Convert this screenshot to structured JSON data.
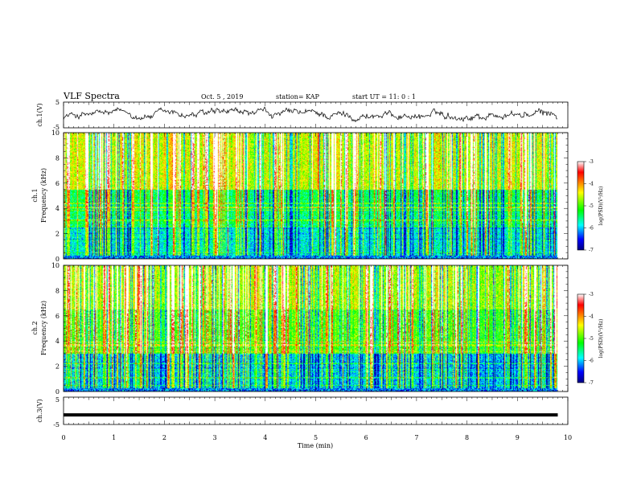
{
  "header": {
    "title": "VLF Spectra",
    "date": "Oct. 5  , 2019",
    "station": "station= KAP",
    "start": "start  UT =   11: 0  : 1"
  },
  "chart_data": [
    {
      "type": "line",
      "panel": "ch1-waveform",
      "ylabel": "ch.1(V)",
      "ylim": [
        -5,
        5
      ],
      "yticks": [
        "5",
        "-5"
      ],
      "xlim": [
        0,
        10
      ],
      "description_series": "noisy voltage trace oscillating mostly between -3 and +2 V",
      "color": "#000000"
    },
    {
      "type": "heatmap",
      "panel": "ch1-spectrogram",
      "ylabel": "ch.1\nFrequency  (kHz)",
      "ylabel_lines": [
        "ch.1",
        "Frequency  (kHz)"
      ],
      "ylim": [
        0,
        10
      ],
      "yticks": [
        "0",
        "2",
        "4",
        "6",
        "8",
        "10"
      ],
      "xlim": [
        0,
        10
      ],
      "colorbar": {
        "label": "log(PSD)(V²/Hz)",
        "range": [
          -7,
          -3
        ],
        "ticks": [
          "-3",
          "-4",
          "-5",
          "-6",
          "-7"
        ]
      }
    },
    {
      "type": "heatmap",
      "panel": "ch2-spectrogram",
      "ylabel": "ch.2\nFrequency  (kHz)",
      "ylabel_lines": [
        "ch.2",
        "Frequency  (kHz)"
      ],
      "ylim": [
        0,
        10
      ],
      "yticks": [
        "0",
        "2",
        "4",
        "6",
        "8",
        "10"
      ],
      "xlim": [
        0,
        10
      ],
      "colorbar": {
        "label": "log(PSD)(V²/Hz)",
        "range": [
          -7,
          -3
        ],
        "ticks": [
          "-3",
          "-4",
          "-5",
          "-6",
          "-7"
        ]
      }
    },
    {
      "type": "line",
      "panel": "ch3-waveform",
      "ylabel": "ch.3(V)",
      "ylim": [
        -5,
        5
      ],
      "yticks": [
        "5",
        "-5"
      ],
      "xlim": [
        0,
        10
      ],
      "constant_value": -1.5,
      "color": "#000000"
    }
  ],
  "xaxis": {
    "label": "Time  (min)",
    "ticks": [
      "0",
      "1",
      "2",
      "3",
      "4",
      "5",
      "6",
      "7",
      "8",
      "9",
      "10"
    ],
    "range": [
      0,
      10
    ]
  },
  "colors": {
    "axis": "#000000",
    "trace": "#000000",
    "background": "#ffffff",
    "colormap": [
      "#000080",
      "#0000ff",
      "#00ffff",
      "#00ff00",
      "#ffff00",
      "#ff0000",
      "#ffffff"
    ]
  }
}
